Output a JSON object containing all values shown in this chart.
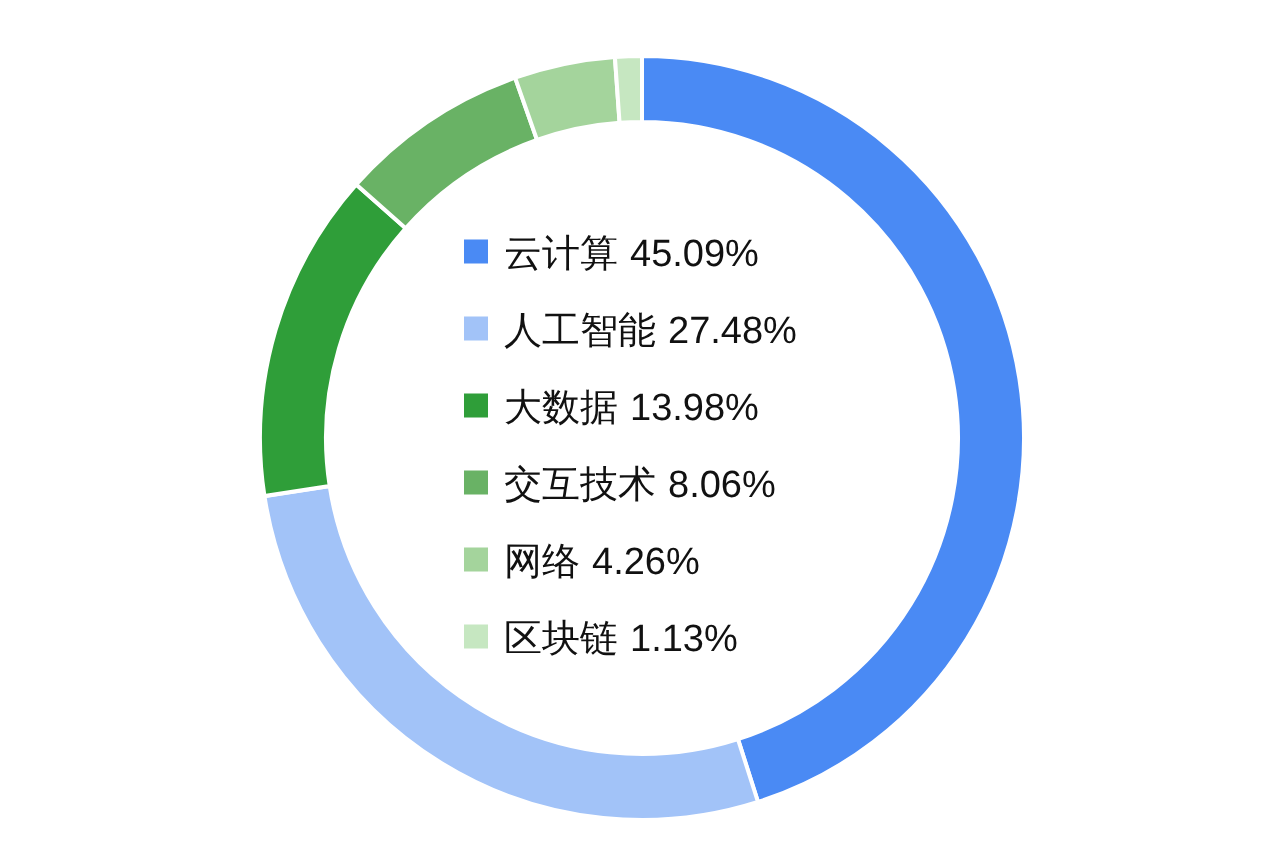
{
  "chart_data": {
    "type": "donut",
    "categories": [
      "云计算",
      "人工智能",
      "大数据",
      "交互技术",
      "网络",
      "区块链"
    ],
    "values": [
      45.09,
      27.48,
      13.98,
      8.06,
      4.26,
      1.13
    ],
    "colors": [
      "#4a8af4",
      "#a2c3f8",
      "#2f9e39",
      "#69b265",
      "#a4d49c",
      "#c6e7c1"
    ],
    "value_labels": [
      "45.09%",
      "27.48%",
      "13.98%",
      "8.06%",
      "4.26%",
      "1.13%"
    ],
    "legend": "center"
  }
}
